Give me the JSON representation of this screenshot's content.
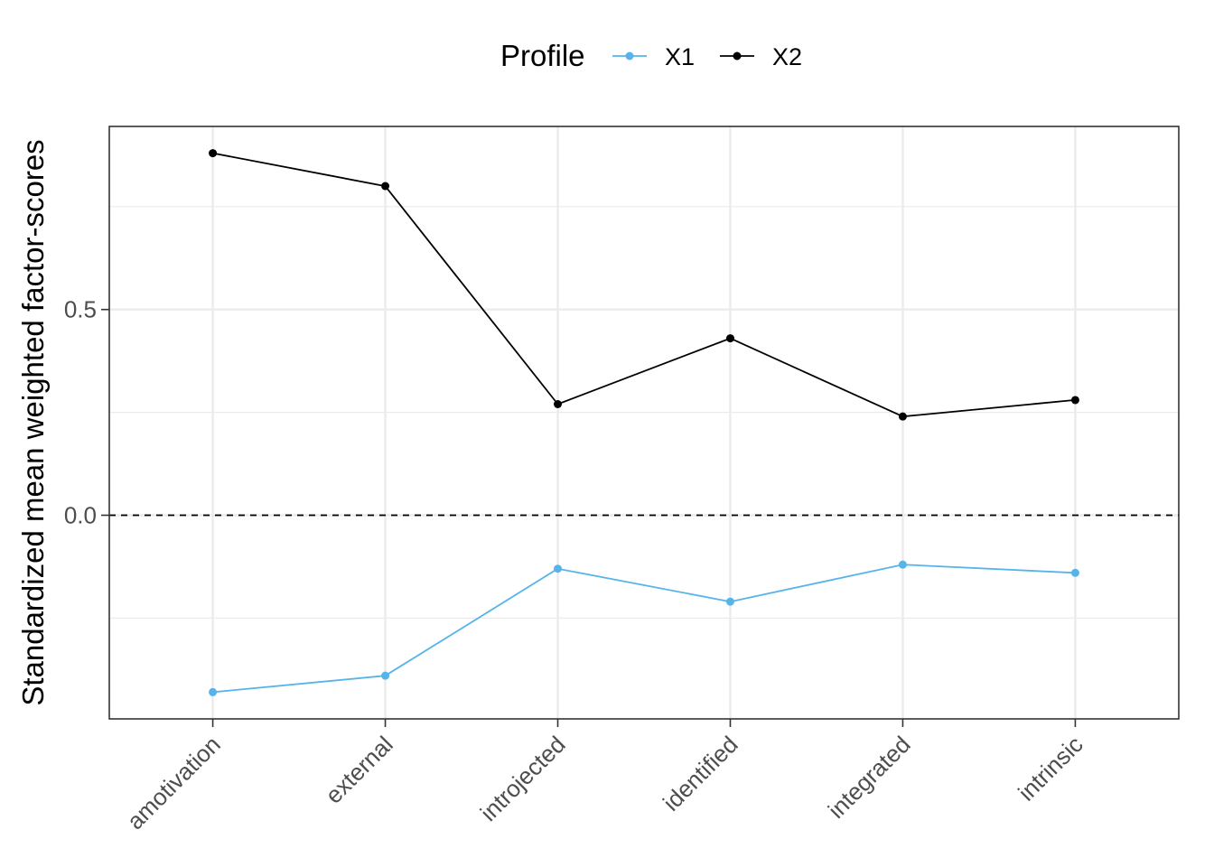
{
  "chart_data": {
    "type": "line",
    "title": "",
    "xlabel": "",
    "ylabel": "Standardized mean weighted factor-scores",
    "categories": [
      "amotivation",
      "external",
      "introjected",
      "identified",
      "integrated",
      "intrinsic"
    ],
    "series": [
      {
        "name": "X1",
        "color": "#56B4E9",
        "values": [
          -0.43,
          -0.39,
          -0.13,
          -0.21,
          -0.12,
          -0.14
        ]
      },
      {
        "name": "X2",
        "color": "#000000",
        "values": [
          0.88,
          0.8,
          0.27,
          0.43,
          0.24,
          0.28
        ]
      }
    ],
    "ylim": [
      -0.495,
      0.945
    ],
    "yticks": [
      0.0,
      0.5
    ],
    "ytick_labels": [
      "0.0",
      "0.5"
    ],
    "yminor": [
      -0.25,
      0.25,
      0.75
    ],
    "reference_line": {
      "y": 0,
      "style": "dashed"
    },
    "grid": true,
    "legend": {
      "title": "Profile",
      "position": "top"
    }
  }
}
